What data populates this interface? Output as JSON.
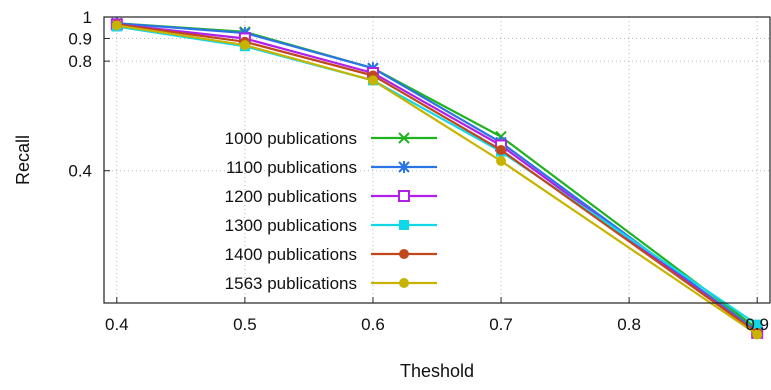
{
  "chart_data": {
    "type": "line",
    "xlabel": "Theshold",
    "ylabel": "Recall",
    "x": [
      0.4,
      0.5,
      0.6,
      0.7,
      0.8,
      0.9
    ],
    "xlim": [
      0.39,
      0.91
    ],
    "ylim": [
      0.1,
      1.0
    ],
    "y_scale": "sqrt",
    "x_ticks": [
      0.4,
      0.5,
      0.6,
      0.7,
      0.8,
      0.9
    ],
    "x_tick_labels": [
      "0.4",
      "0.5",
      "0.6",
      "0.7",
      "0.8",
      "0.9"
    ],
    "y_ticks": [
      0.4,
      0.8,
      0.9,
      1.0
    ],
    "y_tick_labels": [
      "0.4",
      "0.8",
      "0.9",
      "1"
    ],
    "grid": true,
    "legend_position": "bottom-left",
    "series": [
      {
        "name": "1000 publications",
        "color": "#1fb31f",
        "marker": "x",
        "x": [
          0.4,
          0.5,
          0.6,
          0.7,
          0.9
        ],
        "values": [
          0.97,
          0.93,
          0.77,
          0.51,
          0.065
        ]
      },
      {
        "name": "1100 publications",
        "color": "#2b74e8",
        "marker": "star",
        "x": [
          0.4,
          0.5,
          0.6,
          0.7,
          0.9
        ],
        "values": [
          0.97,
          0.925,
          0.77,
          0.49,
          0.062
        ]
      },
      {
        "name": "1200 publications",
        "color": "#b020e8",
        "marker": "square-open",
        "x": [
          0.4,
          0.5,
          0.6,
          0.7,
          0.9
        ],
        "values": [
          0.965,
          0.9,
          0.75,
          0.48,
          0.06
        ]
      },
      {
        "name": "1300 publications",
        "color": "#10d8e8",
        "marker": "square-filled",
        "x": [
          0.4,
          0.5,
          0.6,
          0.7,
          0.9
        ],
        "values": [
          0.955,
          0.865,
          0.72,
          0.46,
          0.07
        ]
      },
      {
        "name": "1400 publications",
        "color": "#c0481c",
        "marker": "circle",
        "x": [
          0.4,
          0.5,
          0.6,
          0.7,
          0.9
        ],
        "values": [
          0.965,
          0.885,
          0.74,
          0.465,
          0.06
        ]
      },
      {
        "name": "1563 publications",
        "color": "#c8b400",
        "marker": "circle",
        "x": [
          0.4,
          0.5,
          0.6,
          0.7,
          0.9
        ],
        "values": [
          0.96,
          0.87,
          0.72,
          0.43,
          0.058
        ]
      }
    ]
  }
}
